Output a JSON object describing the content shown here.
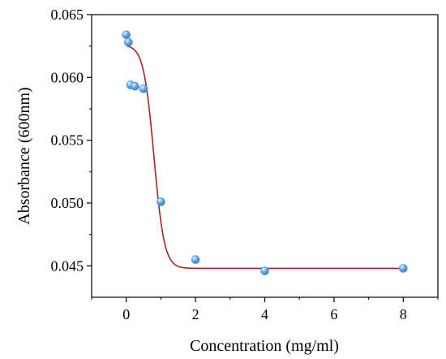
{
  "chart_data": {
    "type": "scatter",
    "title": "",
    "xlabel": "Concentration (mg/ml)",
    "ylabel": "Absorbance (600nm)",
    "xlim": [
      -1,
      9
    ],
    "ylim": [
      0.0425,
      0.065
    ],
    "x_ticks": [
      0,
      2,
      4,
      6,
      8
    ],
    "x_tick_labels": [
      "0",
      "2",
      "4",
      "6",
      "8"
    ],
    "y_ticks": [
      0.045,
      0.05,
      0.055,
      0.06,
      0.065
    ],
    "y_tick_labels": [
      "0.045",
      "0.050",
      "0.055",
      "0.060",
      "0.065"
    ],
    "grid": false,
    "legend": "none",
    "series": [
      {
        "kind": "scatter",
        "x": [
          0,
          0.0625,
          0.125,
          0.25,
          0.5,
          1,
          2,
          4,
          8
        ],
        "y": [
          0.0634,
          0.0628,
          0.0594,
          0.0593,
          0.0591,
          0.0501,
          0.0455,
          0.0446,
          0.0448
        ],
        "color": "#5ba6ea"
      },
      {
        "kind": "fit-line",
        "model": "sigmoidal",
        "params": {
          "top": 0.0626,
          "bottom": 0.0448,
          "x50": 0.8,
          "slope": 0.15
        },
        "x_range": [
          0,
          8
        ],
        "color": "#a0281e"
      }
    ]
  }
}
